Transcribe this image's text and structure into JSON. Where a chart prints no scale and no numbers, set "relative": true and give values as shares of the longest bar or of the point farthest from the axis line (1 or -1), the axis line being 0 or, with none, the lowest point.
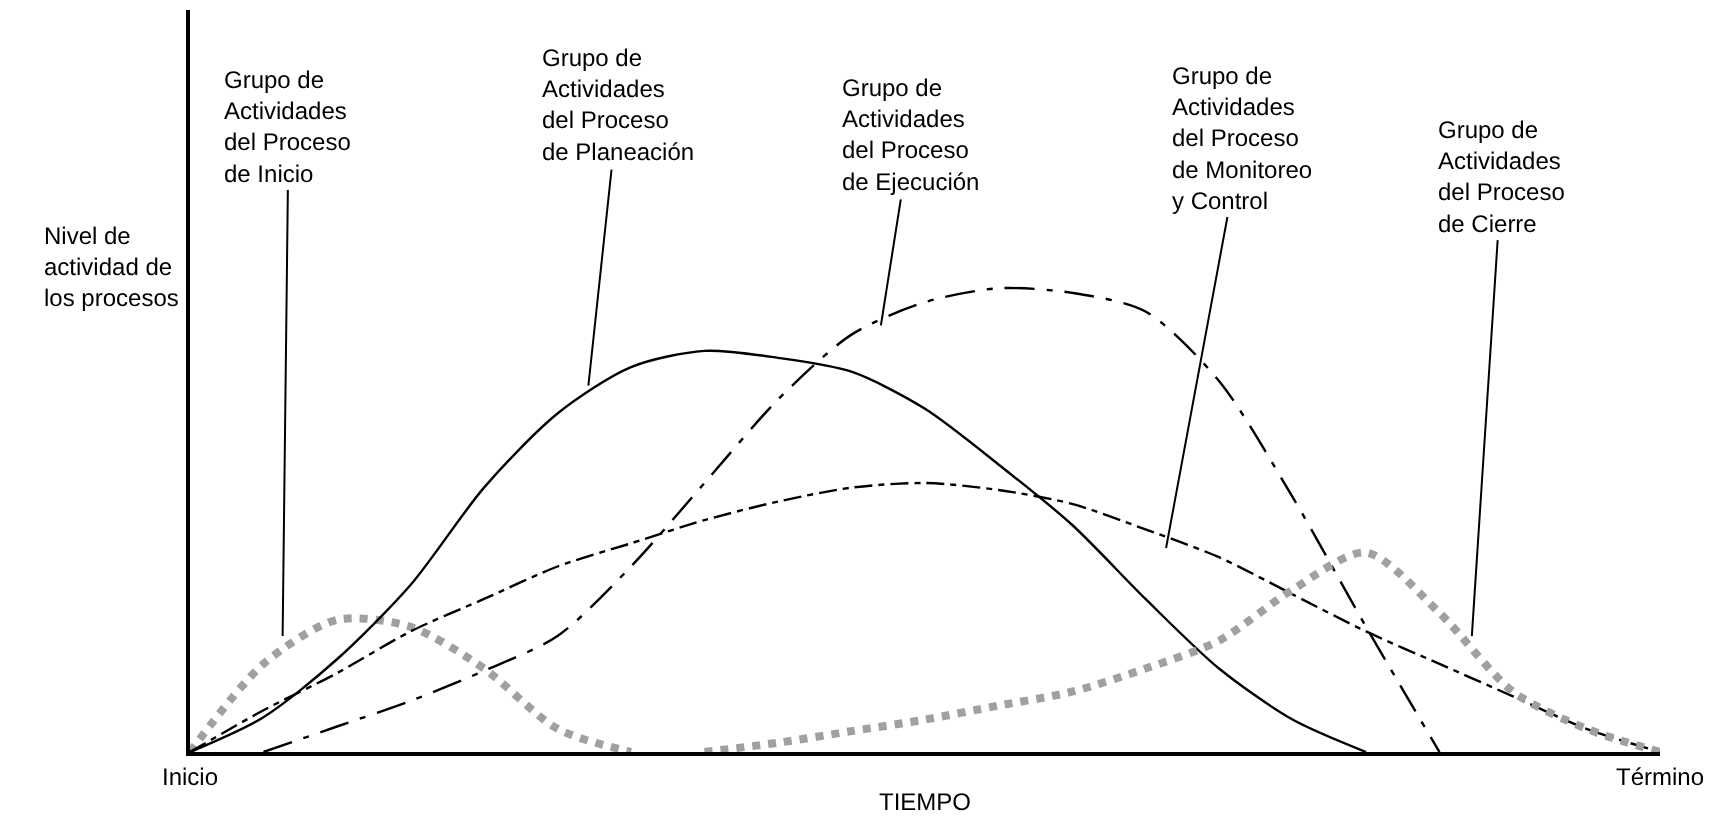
{
  "chart_data": {
    "type": "line",
    "relative": true,
    "ylabel": "Nivel de\nactividad de\nlos procesos",
    "xlabel": "TIEMPO",
    "categories": [
      "Inicio",
      null,
      null,
      null,
      null,
      null,
      null,
      null,
      null,
      null,
      null,
      null,
      null,
      null,
      null,
      null,
      null,
      null,
      null,
      null,
      "Término"
    ],
    "series": [
      {
        "color": "#a0a0a0",
        "line_style": "dotted",
        "values": [
          0,
          0.19,
          0.285,
          0.27,
          0.18,
          0.05,
          0,
          null,
          null,
          null,
          null,
          null,
          null,
          null,
          null,
          null,
          null,
          null,
          null,
          null,
          null
        ]
      },
      {
        "color": "#000000",
        "line_style": "solid",
        "values": [
          0,
          0.075,
          0.2,
          0.36,
          0.57,
          0.73,
          0.83,
          0.865,
          0.85,
          0.82,
          0.74,
          0.62,
          0.49,
          0.33,
          0.18,
          0.07,
          0,
          null,
          null,
          null,
          null
        ]
      },
      {
        "color": "#000000",
        "line_style": "dashed",
        "values": [
          null,
          0,
          0.055,
          0.11,
          0.175,
          0.25,
          0.4,
          0.58,
          0.76,
          0.9,
          0.97,
          1,
          0.99,
          0.95,
          0.8,
          0.55,
          0.27,
          0,
          null,
          null,
          null
        ]
      },
      {
        "color": "#000000",
        "line_style": "dashdot",
        "values": [
          0,
          0.09,
          0.17,
          0.26,
          0.33,
          0.4,
          0.45,
          0.5,
          0.54,
          0.57,
          0.58,
          0.565,
          0.535,
          0.48,
          0.42,
          0.34,
          0.26,
          0.19,
          0.12,
          0.05,
          0
        ]
      },
      {
        "color": "#a0a0a0",
        "line_style": "dotted",
        "values": [
          null,
          null,
          null,
          null,
          null,
          null,
          null,
          0,
          0.02,
          0.045,
          0.07,
          0.1,
          0.13,
          0.18,
          0.24,
          0.35,
          0.43,
          0.3,
          0.13,
          0.05,
          0
        ]
      }
    ],
    "annotations": [
      "Grupo de\nActividades\ndel Proceso\nde Inicio",
      "Grupo de\nActividades\ndel Proceso\nde Planeación",
      "Grupo de\nActividades\ndel Proceso\nde Ejecución",
      "Grupo de\nActividades\ndel Proceso\nde Monitoreo\ny Control",
      "Grupo de\nActividades\ndel Proceso\nde Cierre"
    ]
  }
}
